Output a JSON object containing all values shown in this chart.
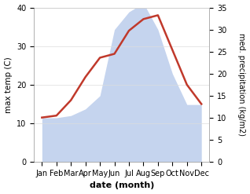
{
  "months": [
    "Jan",
    "Feb",
    "Mar",
    "Apr",
    "May",
    "Jun",
    "Jul",
    "Aug",
    "Sep",
    "Oct",
    "Nov",
    "Dec"
  ],
  "temperature": [
    11.5,
    12,
    16,
    22,
    27,
    28,
    34,
    37,
    38,
    29,
    20,
    15
  ],
  "precipitation": [
    10,
    10,
    10.5,
    12,
    15,
    30,
    34,
    36,
    30,
    20,
    13,
    13
  ],
  "temp_color": "#c0392b",
  "precip_color": "#c5d4ee",
  "left_ylabel": "max temp (C)",
  "right_ylabel": "med. precipitation (kg/m2)",
  "xlabel": "date (month)",
  "left_ylim": [
    0,
    40
  ],
  "right_ylim": [
    0,
    35
  ],
  "left_yticks": [
    0,
    10,
    20,
    30,
    40
  ],
  "right_yticks": [
    0,
    5,
    10,
    15,
    20,
    25,
    30,
    35
  ],
  "bg_color": "#ffffff"
}
